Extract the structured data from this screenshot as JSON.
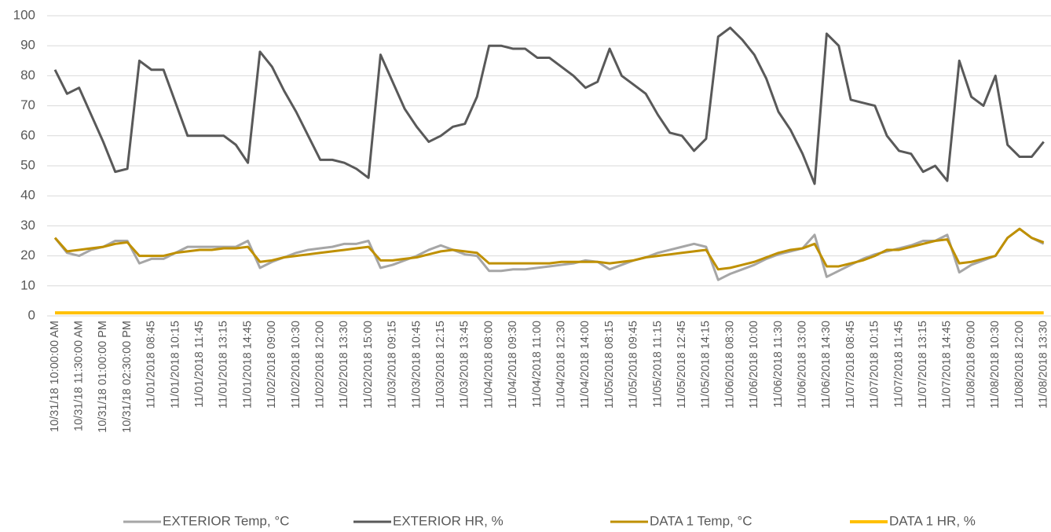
{
  "chart_data": {
    "type": "line",
    "categories": [
      "10/31/18 10:00:00 AM",
      null,
      "10/31/18 11:30:00 AM",
      null,
      "10/31/18 01:00:00 PM",
      null,
      "10/31/18 02:30:00 PM",
      null,
      "11/01/2018 08:45",
      null,
      "11/01/2018 10:15",
      null,
      "11/01/2018 11:45",
      null,
      "11/01/2018 13:15",
      null,
      "11/01/2018 14:45",
      null,
      "11/02/2018 09:00",
      null,
      "11/02/2018 10:30",
      null,
      "11/02/2018 12:00",
      null,
      "11/02/2018 13:30",
      null,
      "11/02/2018 15:00",
      null,
      "11/03/2018 09:15",
      null,
      "11/03/2018 10:45",
      null,
      "11/03/2018 12:15",
      null,
      "11/03/2018 13:45",
      null,
      "11/04/2018 08:00",
      null,
      "11/04/2018 09:30",
      null,
      "11/04/2018 11:00",
      null,
      "11/04/2018 12:30",
      null,
      "11/04/2018 14:00",
      null,
      "11/05/2018 08:15",
      null,
      "11/05/2018 09:45",
      null,
      "11/05/2018 11:15",
      null,
      "11/05/2018 12:45",
      null,
      "11/05/2018 14:15",
      null,
      "11/06/2018 08:30",
      null,
      "11/06/2018 10:00",
      null,
      "11/06/2018 11:30",
      null,
      "11/06/2018 13:00",
      null,
      "11/06/2018 14:30",
      null,
      "11/07/2018 08:45",
      null,
      "11/07/2018 10:15",
      null,
      "11/07/2018 11:45",
      null,
      "11/07/2018 13:15",
      null,
      "11/07/2018 14:45",
      null,
      "11/08/2018 09:00",
      null,
      "11/08/2018 10:30",
      null,
      "11/08/2018 12:00",
      null,
      "11/08/2018 13:30"
    ],
    "series": [
      {
        "name": "EXTERIOR Temp, °C",
        "color": "#a6a6a6",
        "values": [
          26,
          21,
          20,
          22,
          23,
          25,
          25,
          17.5,
          19,
          19,
          21,
          23,
          23,
          23,
          23,
          23,
          25,
          16,
          18,
          19.5,
          21,
          22,
          22.5,
          23,
          24,
          24,
          25,
          16,
          17,
          18.5,
          20,
          22,
          23.5,
          22,
          20.5,
          20,
          15,
          15,
          15.5,
          15.5,
          16,
          16.5,
          17,
          17.5,
          18.5,
          18,
          15.5,
          17,
          18.5,
          19.5,
          21,
          22,
          23,
          24,
          23,
          12,
          14,
          15.5,
          17,
          19,
          20.5,
          21.5,
          22.5,
          27,
          13,
          15,
          17,
          19,
          20.5,
          21.5,
          22.5,
          23.5,
          25,
          25,
          27,
          14.5,
          17,
          18.5,
          20,
          26,
          29,
          26,
          24
        ]
      },
      {
        "name": "EXTERIOR HR, %",
        "color": "#595959",
        "values": [
          82,
          74,
          76,
          67,
          58,
          48,
          49,
          85,
          82,
          82,
          71,
          60,
          60,
          60,
          60,
          57,
          51,
          88,
          83,
          75,
          68,
          60,
          52,
          52,
          51,
          49,
          46,
          87,
          78,
          69,
          63,
          58,
          60,
          63,
          64,
          73,
          90,
          90,
          89,
          89,
          86,
          86,
          83,
          80,
          76,
          78,
          89,
          80,
          77,
          74,
          67,
          61,
          60,
          55,
          59,
          93,
          96,
          92,
          87,
          79,
          68,
          62,
          54,
          44,
          94,
          90,
          72,
          71,
          70,
          60,
          55,
          54,
          48,
          50,
          45,
          85,
          73,
          70,
          80,
          57,
          53,
          53,
          58
        ]
      },
      {
        "name": "DATA 1 Temp, °C",
        "color": "#bf9000",
        "values": [
          26,
          21.5,
          22,
          22.5,
          23,
          24,
          24.5,
          20,
          20,
          20,
          21,
          21.5,
          22,
          22,
          22.5,
          22.5,
          23,
          18,
          18.5,
          19.5,
          20,
          20.5,
          21,
          21.5,
          22,
          22.5,
          23,
          18.5,
          18.5,
          19,
          19.5,
          20.5,
          21.5,
          22,
          21.5,
          21,
          17.5,
          17.5,
          17.5,
          17.5,
          17.5,
          17.5,
          18,
          18,
          18,
          18,
          17.5,
          18,
          18.5,
          19.5,
          20,
          20.5,
          21,
          21.5,
          22,
          15.5,
          16,
          17,
          18,
          19.5,
          21,
          22,
          22.5,
          24,
          16.5,
          16.5,
          17.5,
          18.5,
          20,
          22,
          22,
          23,
          24,
          25,
          25.5,
          17.5,
          18,
          19,
          20,
          26,
          29,
          26,
          24.5
        ]
      },
      {
        "name": "DATA 1 HR, %",
        "color": "#ffc000",
        "values": [
          1,
          1,
          1,
          1,
          1,
          1,
          1,
          1,
          1,
          1,
          1,
          1,
          1,
          1,
          1,
          1,
          1,
          1,
          1,
          1,
          1,
          1,
          1,
          1,
          1,
          1,
          1,
          1,
          1,
          1,
          1,
          1,
          1,
          1,
          1,
          1,
          1,
          1,
          1,
          1,
          1,
          1,
          1,
          1,
          1,
          1,
          1,
          1,
          1,
          1,
          1,
          1,
          1,
          1,
          1,
          1,
          1,
          1,
          1,
          1,
          1,
          1,
          1,
          1,
          1,
          1,
          1,
          1,
          1,
          1,
          1,
          1,
          1,
          1,
          1,
          1,
          1,
          1,
          1,
          1,
          1,
          1,
          1
        ]
      }
    ],
    "ylim": [
      0,
      100
    ],
    "yticks": [
      0,
      10,
      20,
      30,
      40,
      50,
      60,
      70,
      80,
      90,
      100
    ],
    "grid": true,
    "legend": "bottom"
  }
}
